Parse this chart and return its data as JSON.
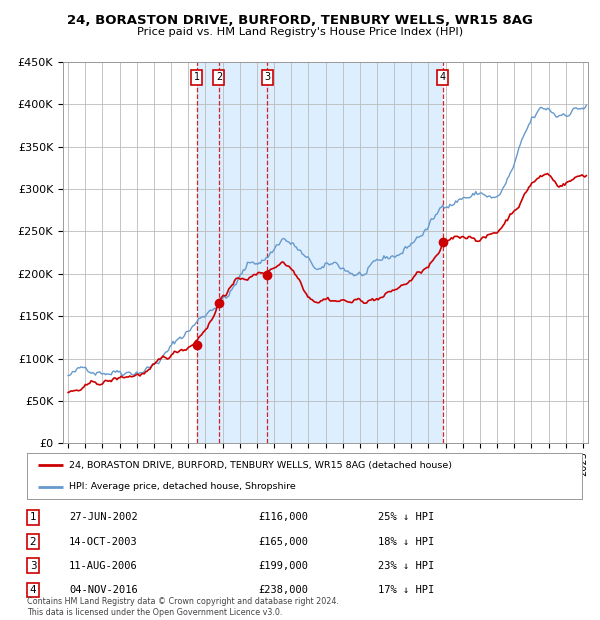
{
  "title1": "24, BORASTON DRIVE, BURFORD, TENBURY WELLS, WR15 8AG",
  "title2": "Price paid vs. HM Land Registry's House Price Index (HPI)",
  "sale_dates_num": [
    2002.489,
    2003.789,
    2006.614,
    2016.843
  ],
  "sale_prices": [
    116000,
    165000,
    199000,
    238000
  ],
  "sale_labels": [
    "1",
    "2",
    "3",
    "4"
  ],
  "sale_date_strs": [
    "27-JUN-2002",
    "14-OCT-2003",
    "11-AUG-2006",
    "04-NOV-2016"
  ],
  "sale_price_strs": [
    "£116,000",
    "£165,000",
    "£199,000",
    "£238,000"
  ],
  "sale_pct_strs": [
    "25% ↓ HPI",
    "18% ↓ HPI",
    "23% ↓ HPI",
    "17% ↓ HPI"
  ],
  "legend_line1": "24, BORASTON DRIVE, BURFORD, TENBURY WELLS, WR15 8AG (detached house)",
  "legend_line2": "HPI: Average price, detached house, Shropshire",
  "footer": "Contains HM Land Registry data © Crown copyright and database right 2024.\nThis data is licensed under the Open Government Licence v3.0.",
  "red_color": "#cc0000",
  "blue_color": "#6699cc",
  "shade_color": "#ddeeff",
  "ylim": [
    0,
    450000
  ],
  "xlim_start": 1994.7,
  "xlim_end": 2025.3,
  "hpi_checkpoints_t": [
    1995.0,
    1996.0,
    1997.0,
    1998.0,
    1999.0,
    2000.0,
    2001.0,
    2001.5,
    2002.0,
    2002.5,
    2003.0,
    2003.5,
    2004.0,
    2004.5,
    2005.0,
    2005.5,
    2006.0,
    2006.5,
    2007.0,
    2007.5,
    2008.0,
    2008.5,
    2009.0,
    2009.5,
    2010.0,
    2010.5,
    2011.0,
    2011.5,
    2012.0,
    2012.5,
    2013.0,
    2013.5,
    2014.0,
    2014.5,
    2015.0,
    2015.5,
    2016.0,
    2016.5,
    2017.0,
    2017.5,
    2018.0,
    2018.5,
    2019.0,
    2019.5,
    2020.0,
    2020.5,
    2021.0,
    2021.5,
    2022.0,
    2022.5,
    2023.0,
    2023.5,
    2024.0,
    2024.5,
    2025.2
  ],
  "hpi_checkpoints_v": [
    80000,
    84000,
    90000,
    96000,
    102000,
    112000,
    130000,
    140000,
    150000,
    160000,
    170000,
    182000,
    192000,
    200000,
    215000,
    228000,
    232000,
    238000,
    250000,
    265000,
    258000,
    248000,
    232000,
    222000,
    220000,
    222000,
    218000,
    214000,
    212000,
    212000,
    215000,
    218000,
    222000,
    228000,
    238000,
    248000,
    258000,
    270000,
    285000,
    292000,
    298000,
    300000,
    302000,
    300000,
    295000,
    310000,
    330000,
    355000,
    375000,
    385000,
    385000,
    378000,
    385000,
    392000,
    395000
  ],
  "pp_checkpoints_t": [
    1995.0,
    1996.0,
    1997.0,
    1998.0,
    1999.0,
    2000.0,
    2001.0,
    2002.0,
    2002.489,
    2002.8,
    2003.0,
    2003.5,
    2003.789,
    2004.0,
    2004.5,
    2005.0,
    2005.5,
    2006.0,
    2006.614,
    2007.0,
    2007.5,
    2008.0,
    2008.5,
    2009.0,
    2009.5,
    2010.0,
    2010.5,
    2011.0,
    2011.5,
    2012.0,
    2012.5,
    2013.0,
    2013.5,
    2014.0,
    2014.5,
    2015.0,
    2015.5,
    2016.0,
    2016.5,
    2016.843,
    2017.0,
    2017.5,
    2018.0,
    2018.5,
    2019.0,
    2019.5,
    2020.0,
    2020.5,
    2021.0,
    2021.5,
    2022.0,
    2022.5,
    2023.0,
    2023.5,
    2024.0,
    2024.5,
    2025.2
  ],
  "pp_checkpoints_v": [
    60000,
    63000,
    67000,
    71000,
    76000,
    82000,
    92000,
    105000,
    116000,
    125000,
    132000,
    148000,
    165000,
    172000,
    185000,
    190000,
    194000,
    196000,
    199000,
    205000,
    215000,
    208000,
    195000,
    180000,
    178000,
    183000,
    182000,
    182000,
    180000,
    180000,
    182000,
    185000,
    188000,
    193000,
    198000,
    205000,
    212000,
    218000,
    228000,
    238000,
    240000,
    245000,
    248000,
    250000,
    250000,
    252000,
    255000,
    270000,
    285000,
    300000,
    318000,
    325000,
    328000,
    315000,
    320000,
    325000,
    330000
  ]
}
